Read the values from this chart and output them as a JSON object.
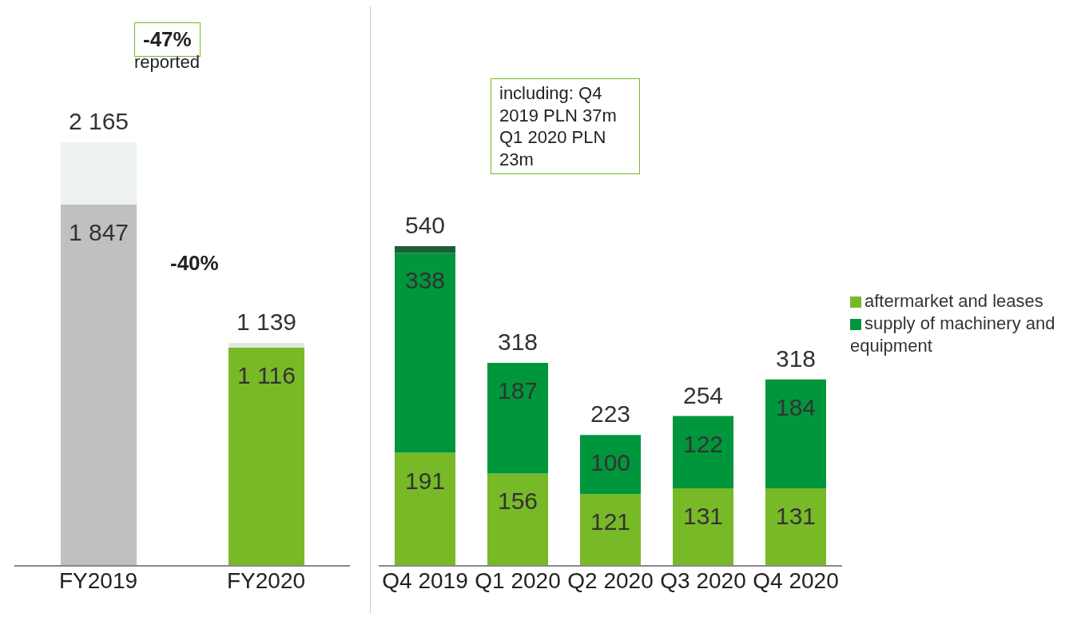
{
  "chart_data": [
    {
      "type": "bar",
      "stacked": true,
      "categories": [
        "FY2019",
        "FY2020"
      ],
      "series": [
        {
          "colors": [
            "#c0c0c0",
            "#78b928"
          ],
          "values": [
            1847,
            1116
          ],
          "value_labels": [
            "1 847",
            "1 116"
          ]
        },
        {
          "colors": [
            "#eef3f0",
            "#e4e6e4"
          ],
          "values": [
            318,
            23
          ]
        }
      ],
      "totals": [
        "2 165",
        "1 139"
      ],
      "annotations": [
        "-47%",
        "reported",
        "-40%"
      ]
    },
    {
      "type": "bar",
      "stacked": true,
      "categories": [
        "Q4 2019",
        "Q1 2020",
        "Q2 2020",
        "Q3 2020",
        "Q4 2020"
      ],
      "series": [
        {
          "name": "aftermarket and leases",
          "color": "#78b928",
          "values": [
            191,
            156,
            121,
            131,
            131
          ],
          "value_labels": [
            "191",
            "156",
            "121",
            "131",
            "131"
          ]
        },
        {
          "name": "supply of machinery and equipment",
          "color": "#00963c",
          "values": [
            338,
            187,
            100,
            122,
            184
          ],
          "value_labels": [
            "338",
            "187",
            "100",
            "122",
            "184"
          ]
        },
        {
          "color": "#1b5e3a",
          "values": [
            11,
            null,
            null,
            null,
            null
          ]
        }
      ],
      "legend": "right",
      "annotations": [
        "including: Q4 2019 PLN 37m Q1 2020 PLN 23m",
        "540",
        "318",
        "223",
        "254",
        "318"
      ]
    }
  ]
}
